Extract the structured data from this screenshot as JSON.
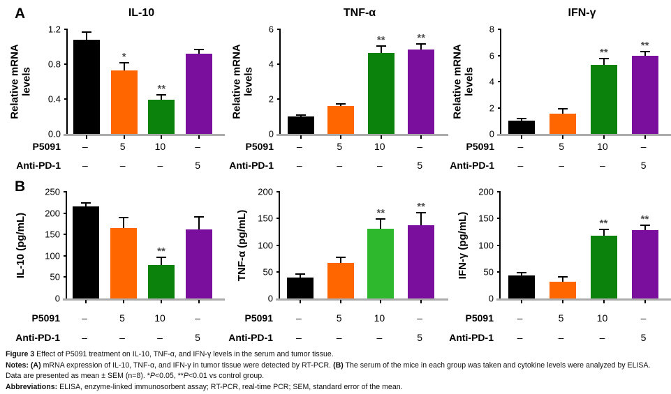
{
  "section_labels": {
    "a": "A",
    "b": "B"
  },
  "dose_rows": {
    "row1_label": "P5091",
    "row2_label": "Anti-PD-1",
    "p5091": [
      "–",
      "5",
      "10",
      "–"
    ],
    "anti_pd1": [
      "–",
      "–",
      "–",
      "5"
    ]
  },
  "colors": {
    "black": "#000000",
    "orange": "#FF6600",
    "green_dark": "#0B820B",
    "green_bright": "#2EB82E",
    "purple": "#7A0F9D",
    "baseline_gray": "#ABABAB",
    "asterisk_gray": "#4D4D4D"
  },
  "chart_data": [
    {
      "type": "bar",
      "id": "il10-mrna",
      "section": "A",
      "title": "IL-10",
      "ylabel_lines": [
        "Relative mRNA",
        "levels"
      ],
      "ymax": 1.2,
      "yticks": [
        "0.0",
        "0.4",
        "0.8",
        "1.2"
      ],
      "values": [
        1.08,
        0.73,
        0.39,
        0.92
      ],
      "errors": [
        0.08,
        0.08,
        0.05,
        0.04
      ],
      "significance": [
        "",
        "*",
        "**",
        ""
      ],
      "bar_colors": [
        "#000000",
        "#FF6600",
        "#0B820B",
        "#7A0F9D"
      ]
    },
    {
      "type": "bar",
      "id": "tnfa-mrna",
      "section": "A",
      "title": "TNF-α",
      "ylabel_lines": [
        "Relative mRNA",
        "levels"
      ],
      "ymax": 6,
      "yticks": [
        "0",
        "2",
        "4",
        "6"
      ],
      "values": [
        1.0,
        1.6,
        4.65,
        4.85
      ],
      "errors": [
        0.06,
        0.1,
        0.35,
        0.27
      ],
      "significance": [
        "",
        "",
        "**",
        "**"
      ],
      "bar_colors": [
        "#000000",
        "#FF6600",
        "#0B820B",
        "#7A0F9D"
      ]
    },
    {
      "type": "bar",
      "id": "ifng-mrna",
      "section": "A",
      "title": "IFN-γ",
      "ylabel_lines": [
        "Relative mRNA",
        "levels"
      ],
      "ymax": 8,
      "yticks": [
        "0",
        "2",
        "4",
        "6",
        "8"
      ],
      "values": [
        1.0,
        1.55,
        5.3,
        5.95
      ],
      "errors": [
        0.13,
        0.3,
        0.4,
        0.3
      ],
      "significance": [
        "",
        "",
        "**",
        "**"
      ],
      "bar_colors": [
        "#000000",
        "#FF6600",
        "#0B820B",
        "#7A0F9D"
      ]
    },
    {
      "type": "bar",
      "id": "il10-elisa",
      "section": "B",
      "title": "",
      "ylabel_lines": [
        "IL-10 (pg/mL)"
      ],
      "ymax": 250,
      "yticks": [
        "0",
        "50",
        "100",
        "150",
        "200",
        "250"
      ],
      "values": [
        215,
        165,
        78,
        161
      ],
      "errors": [
        8,
        23,
        16,
        28
      ],
      "significance": [
        "",
        "",
        "**",
        ""
      ],
      "bar_colors": [
        "#000000",
        "#FF6600",
        "#0B820B",
        "#7A0F9D"
      ]
    },
    {
      "type": "bar",
      "id": "tnfa-elisa",
      "section": "B",
      "title": "",
      "ylabel_lines": [
        "TNF-α (pg/mL)"
      ],
      "ymax": 200,
      "yticks": [
        "0",
        "50",
        "100",
        "150",
        "200"
      ],
      "values": [
        39,
        67,
        131,
        137
      ],
      "errors": [
        6,
        9,
        17,
        22
      ],
      "significance": [
        "",
        "",
        "**",
        "**"
      ],
      "bar_colors": [
        "#000000",
        "#FF6600",
        "#2EB82E",
        "#7A0F9D"
      ]
    },
    {
      "type": "bar",
      "id": "ifng-elisa",
      "section": "B",
      "title": "",
      "ylabel_lines": [
        "IFN-γ (pg/mL)"
      ],
      "ymax": 200,
      "yticks": [
        "0",
        "50",
        "100",
        "150",
        "200"
      ],
      "values": [
        43,
        32,
        118,
        128
      ],
      "errors": [
        4,
        7,
        10,
        8
      ],
      "significance": [
        "",
        "",
        "**",
        "**"
      ],
      "bar_colors": [
        "#000000",
        "#FF6600",
        "#0B820B",
        "#7A0F9D"
      ]
    }
  ],
  "caption": {
    "lines": [
      [
        {
          "t": "Figure 3 ",
          "b": true
        },
        {
          "t": "Effect of P5091 treatment on IL-10, TNF-α, and IFN-γ levels in the serum and tumor tissue.",
          "b": false
        }
      ],
      [
        {
          "t": "Notes: ",
          "b": true
        },
        {
          "t": "(A)",
          "b": true
        },
        {
          "t": " mRNA expression of IL-10, TNF-α, and IFN-γ in tumor tissue were detected by RT-PCR. ",
          "b": false
        },
        {
          "t": "(B)",
          "b": true
        },
        {
          "t": " The serum of the mice in each group was taken and cytokine levels were analyzed by ELISA. Data are presented as mean ± SEM (n=8). *",
          "b": false
        },
        {
          "t": "P",
          "b": false,
          "i": true
        },
        {
          "t": "<0.05, **",
          "b": false
        },
        {
          "t": "P",
          "b": false,
          "i": true
        },
        {
          "t": "<0.01 vs control group.",
          "b": false
        }
      ],
      [
        {
          "t": "Abbreviations: ",
          "b": true
        },
        {
          "t": "ELISA, enzyme-linked immunosorbent assay; RT-PCR, real-time PCR; SEM, standard error of the mean.",
          "b": false
        }
      ]
    ]
  }
}
